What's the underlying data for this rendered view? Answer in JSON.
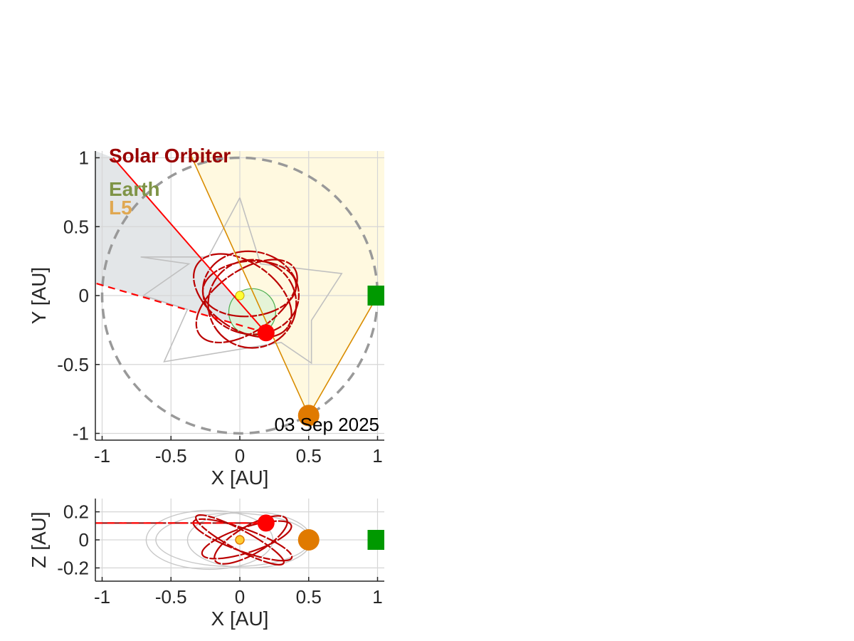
{
  "chart_data": [
    {
      "type": "scatter",
      "panel": "top view",
      "xlabel": "X [AU]",
      "ylabel": "Y [AU]",
      "xlim": [
        -1.05,
        1.05
      ],
      "ylim": [
        -1.05,
        1.05
      ],
      "xticks": [
        -1,
        -0.5,
        0,
        0.5,
        1
      ],
      "xtick_labels": [
        "-1",
        "-0.5",
        "0",
        "0.5",
        "1"
      ],
      "yticks": [
        -1,
        -0.5,
        0,
        0.5,
        1
      ],
      "ytick_labels": [
        "-1",
        "-0.5",
        "0",
        "0.5",
        "1"
      ],
      "grid": true,
      "date": "03 Sep 2025",
      "legend": [
        {
          "label": "Solar Orbiter",
          "color": "#990000"
        },
        {
          "label": "Earth",
          "color": "#7F9447"
        },
        {
          "label": "L5",
          "color": "#E0A852"
        }
      ],
      "earth_orbit_radius": 1.0,
      "sun": {
        "x": 0,
        "y": 0,
        "color": "#FFFF33"
      },
      "solar_orbiter": {
        "x": 0.19,
        "y": -0.27,
        "color": "#FF0000"
      },
      "earth": {
        "x": 1.0,
        "y": 0.0,
        "color": "#009900"
      },
      "l5": {
        "x": 0.5,
        "y": -0.87,
        "color": "#E07A00"
      },
      "solo_orbit_color": "#BB0000",
      "planet_orbit_color": "#C0C0C0",
      "solo_fov_color": "#D9DEE0",
      "l5_fov_color": "#FFF9E0",
      "l5_line_color": "#D98C00",
      "solo_line_color": "#FF0000"
    },
    {
      "type": "scatter",
      "panel": "side view",
      "xlabel": "X [AU]",
      "ylabel": "Z [AU]",
      "xlim": [
        -1.05,
        1.05
      ],
      "ylim": [
        -0.3,
        0.3
      ],
      "xticks": [
        -1,
        -0.5,
        0,
        0.5,
        1
      ],
      "xtick_labels": [
        "-1",
        "-0.5",
        "0",
        "0.5",
        "1"
      ],
      "yticks": [
        -0.2,
        0,
        0.2
      ],
      "ytick_labels": [
        "-0.2",
        "0",
        "0.2"
      ],
      "grid": true,
      "sun": {
        "x": 0,
        "z": 0
      },
      "solar_orbiter": {
        "x": 0.19,
        "z": 0.12
      },
      "earth": {
        "x": 1.0,
        "z": 0.0
      },
      "l5": {
        "x": 0.5,
        "z": 0.0
      }
    }
  ]
}
